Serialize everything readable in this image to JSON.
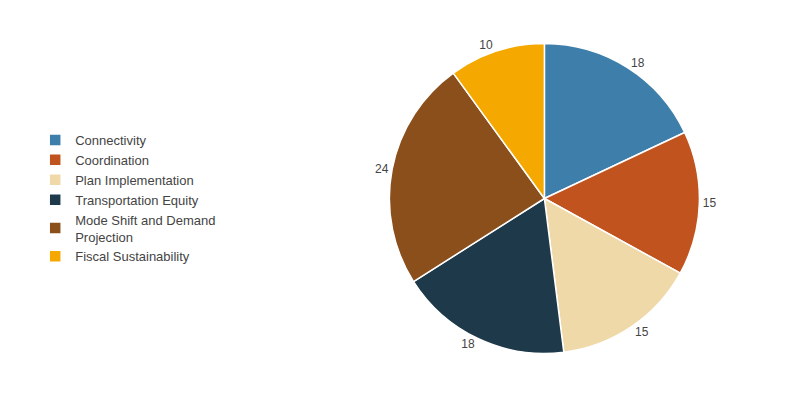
{
  "chart_data": {
    "type": "pie",
    "categories": [
      "Connectivity",
      "Coordination",
      "Plan Implementation",
      "Transportation Equity",
      "Mode Shift and Demand\nProjection",
      "Fiscal Sustainability"
    ],
    "values": [
      18,
      15,
      15,
      18,
      24,
      10
    ],
    "colors": [
      "#3d7eaa",
      "#c1531f",
      "#f0d9a8",
      "#1e3a4a",
      "#8b4f1c",
      "#f5a800"
    ],
    "data_labels": true,
    "legend": "left"
  }
}
